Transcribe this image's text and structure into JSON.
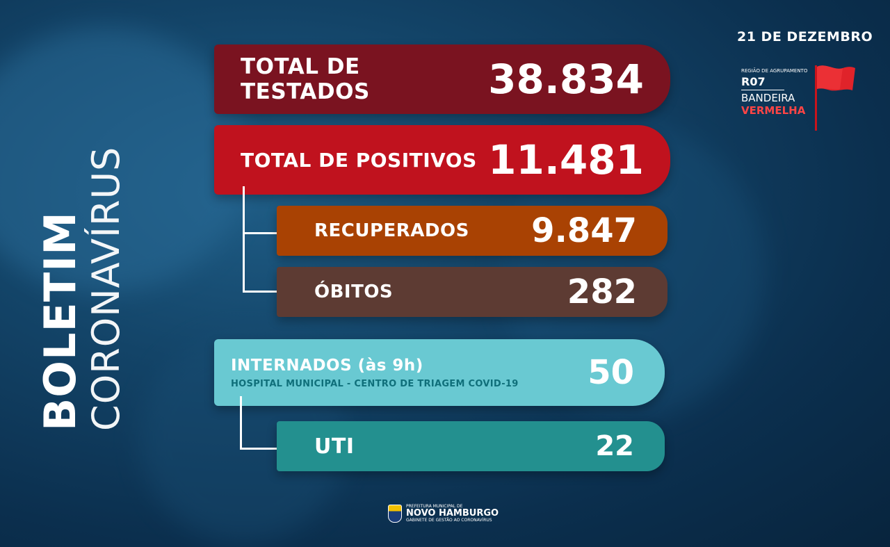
{
  "header": {
    "date": "21 DE DEZEMBRO",
    "region_caption": "REGIÃO DE AGRUPAMENTO",
    "region_code": "R07",
    "flag_line1": "BANDEIRA",
    "flag_line2": "VERMELHA",
    "flag_color": "#e0232a"
  },
  "title": {
    "line1": "BOLETIM",
    "line2": "CORONAVÍRUS"
  },
  "stats": {
    "testados_label": "TOTAL DE TESTADOS",
    "testados_value": "38.834",
    "positivos_label": "TOTAL DE POSITIVOS",
    "positivos_value": "11.481",
    "recuperados_label": "RECUPERADOS",
    "recuperados_value": "9.847",
    "obitos_label": "ÓBITOS",
    "obitos_value": "282",
    "internados_label": "INTERNADOS (às 9h)",
    "internados_sub": "HOSPITAL MUNICIPAL - CENTRO DE TRIAGEM COVID-19",
    "internados_value": "50",
    "uti_label": "UTI",
    "uti_value": "22"
  },
  "footer": {
    "line1": "PREFEITURA MUNICIPAL DE",
    "line2": "NOVO HAMBURGO",
    "line3": "GABINETE DE GESTÃO AO CORONAVÍRUS"
  },
  "colors": {
    "testados": "#7a1320",
    "positivos": "#c0121e",
    "recuperados": "#a94203",
    "obitos": "#5d3b33",
    "internados": "#69c9d2",
    "uti": "#23908f"
  }
}
